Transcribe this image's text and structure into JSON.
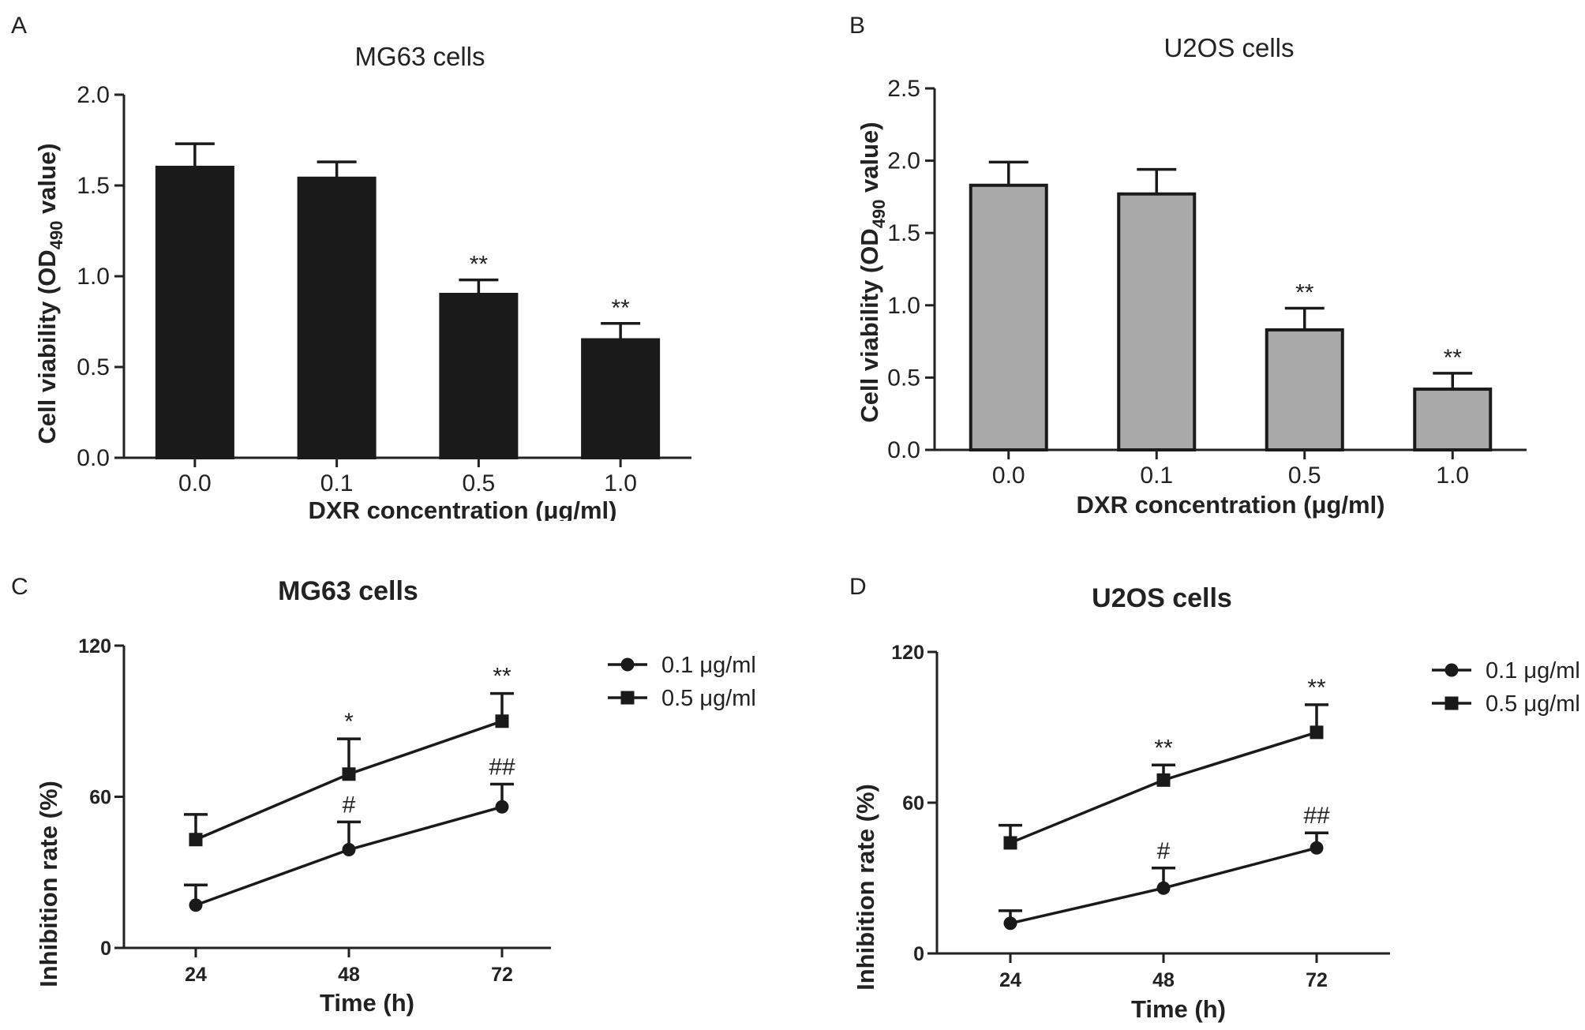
{
  "chart_data": [
    {
      "panel": "A",
      "type": "bar",
      "title": "MG63 cells",
      "xlabel": "DXR concentration (μg/ml)",
      "ylabel_pre": "Cell viability (OD",
      "ylabel_sub": "490",
      "ylabel_post": " value)",
      "categories": [
        "0.0",
        "0.1",
        "0.5",
        "1.0"
      ],
      "values": [
        1.6,
        1.54,
        0.9,
        0.65
      ],
      "errors": [
        0.13,
        0.09,
        0.08,
        0.09
      ],
      "annotations": [
        "",
        "",
        "**",
        "**"
      ],
      "ylim": [
        0,
        2.0
      ],
      "yticks": [
        "0.0",
        "0.5",
        "1.0",
        "1.5",
        "2.0"
      ],
      "bar_color": "#1a1a1a"
    },
    {
      "panel": "B",
      "type": "bar",
      "title": "U2OS cells",
      "xlabel": "DXR concentration (μg/ml)",
      "ylabel_pre": "Cell viability (OD",
      "ylabel_sub": "490",
      "ylabel_post": " value)",
      "categories": [
        "0.0",
        "0.1",
        "0.5",
        "1.0"
      ],
      "values": [
        1.83,
        1.77,
        0.83,
        0.42
      ],
      "errors": [
        0.16,
        0.17,
        0.15,
        0.11
      ],
      "annotations": [
        "",
        "",
        "**",
        "**"
      ],
      "ylim": [
        0,
        2.5
      ],
      "yticks": [
        "0.0",
        "0.5",
        "1.0",
        "1.5",
        "2.0",
        "2.5"
      ],
      "bar_color": "#a9a9a9"
    },
    {
      "panel": "C",
      "type": "line",
      "title": "MG63 cells",
      "xlabel": "Time (h)",
      "ylabel": "Inhibition rate (%)",
      "x": [
        "24",
        "48",
        "72"
      ],
      "ylim": [
        0,
        120
      ],
      "yticks": [
        "0",
        "60",
        "120"
      ],
      "series": [
        {
          "name": "0.1 μg/ml",
          "marker": "circle",
          "values": [
            17,
            39,
            56
          ],
          "errors": [
            8,
            11,
            9
          ],
          "annotations": [
            "",
            "#",
            "##"
          ]
        },
        {
          "name": "0.5 μg/ml",
          "marker": "square",
          "values": [
            43,
            69,
            90
          ],
          "errors": [
            10,
            14,
            11
          ],
          "annotations": [
            "",
            "*",
            "**"
          ]
        }
      ],
      "legend_position": "right"
    },
    {
      "panel": "D",
      "type": "line",
      "title": "U2OS cells",
      "xlabel": "Time (h)",
      "ylabel": "Inhibition rate (%)",
      "x": [
        "24",
        "48",
        "72"
      ],
      "ylim": [
        0,
        120
      ],
      "yticks": [
        "60",
        "120"
      ],
      "zero_tick": "0",
      "series": [
        {
          "name": "0.1 μg/ml",
          "marker": "circle",
          "values": [
            12,
            26,
            42
          ],
          "errors": [
            5,
            8,
            6
          ],
          "annotations": [
            "",
            "#",
            "##"
          ]
        },
        {
          "name": "0.5 μg/ml",
          "marker": "square",
          "values": [
            44,
            69,
            88
          ],
          "errors": [
            7,
            6,
            11
          ],
          "annotations": [
            "",
            "**",
            "**"
          ]
        }
      ],
      "legend_position": "right"
    }
  ]
}
